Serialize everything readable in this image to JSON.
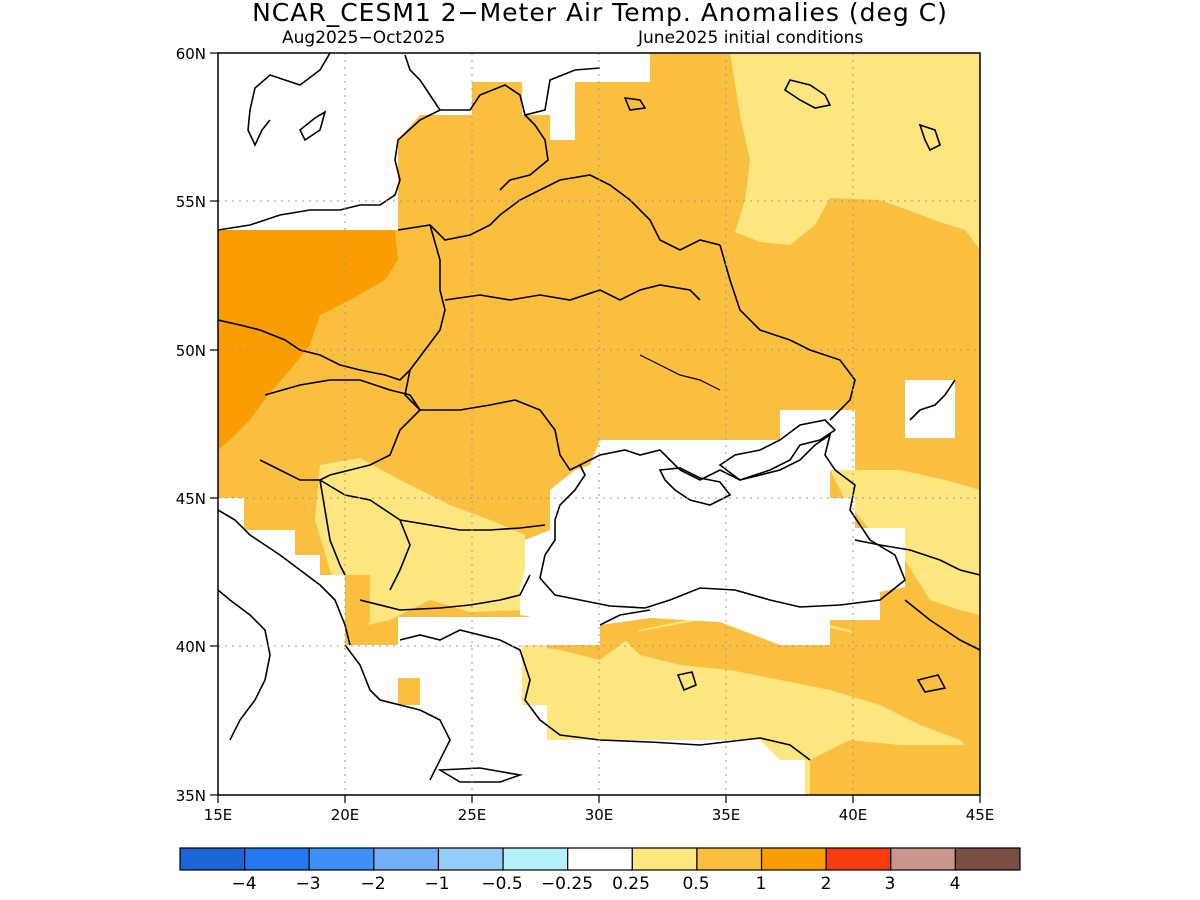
{
  "title": "NCAR_CESM1 2−Meter Air Temp. Anomalies (deg C)",
  "subtitle_left": "Aug2025−Oct2025",
  "subtitle_right": "June2025 initial conditions",
  "map": {
    "lon_range": [
      15,
      45
    ],
    "lat_range": [
      35,
      60
    ],
    "lon_ticks": [
      "15E",
      "20E",
      "25E",
      "30E",
      "35E",
      "40E",
      "45E"
    ],
    "lat_ticks": [
      "60N",
      "55N",
      "50N",
      "45N",
      "40N",
      "35N"
    ],
    "gridlines": "dotted",
    "regions": [
      {
        "name": "anomaly 0.25–0.5",
        "color": "#fde680"
      },
      {
        "name": "anomaly 0.5–1",
        "color": "#fbbf40"
      },
      {
        "name": "anomaly 1–2",
        "color": "#f99d00"
      }
    ]
  },
  "colorbar": {
    "colors": [
      "#1a66d8",
      "#2278ee",
      "#3c90f6",
      "#73b0f8",
      "#96cdf8",
      "#b4f0fa",
      "#ffffff",
      "#fde680",
      "#fbbf40",
      "#f99d00",
      "#f63b0e",
      "#c9978b",
      "#7a4e42"
    ],
    "labels": [
      "−4",
      "−3",
      "−2",
      "−1",
      "−0.5",
      "−0.25",
      "0.25",
      "0.5",
      "1",
      "2",
      "3",
      "4"
    ]
  }
}
